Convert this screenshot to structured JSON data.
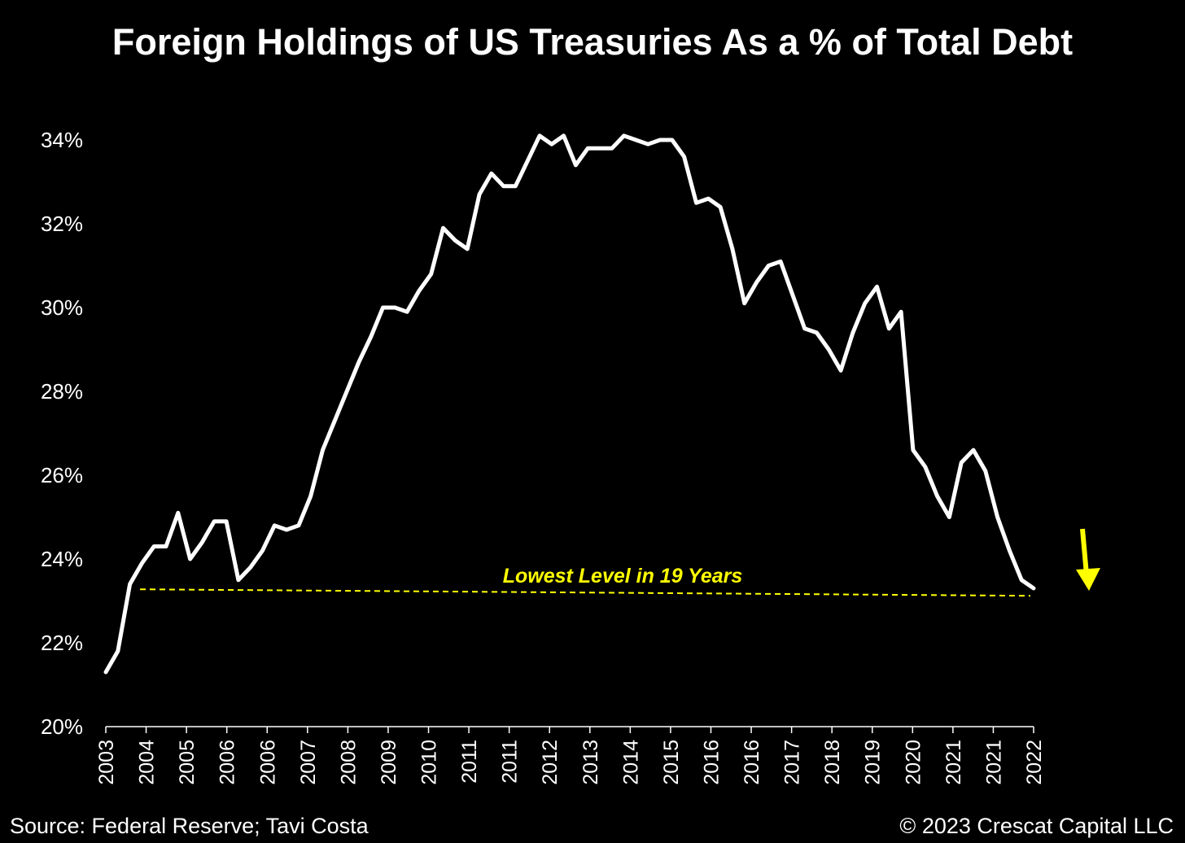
{
  "chart_data": {
    "type": "line",
    "title": "Foreign Holdings of US Treasuries As a % of Total Debt",
    "xlabel": "",
    "ylabel": "",
    "ylim": [
      20,
      35
    ],
    "y_ticks": [
      "20%",
      "22%",
      "24%",
      "26%",
      "28%",
      "30%",
      "32%",
      "34%"
    ],
    "y_tick_values": [
      20,
      22,
      24,
      26,
      28,
      30,
      32,
      34
    ],
    "x_tick_labels": [
      "2003",
      "2004",
      "2005",
      "2006",
      "2006",
      "2007",
      "2008",
      "2009",
      "2010",
      "2011",
      "2011",
      "2012",
      "2013",
      "2014",
      "2015",
      "2016",
      "2016",
      "2017",
      "2018",
      "2019",
      "2020",
      "2021",
      "2021",
      "2022"
    ],
    "grid": false,
    "legend": "none",
    "series": [
      {
        "color": "#ffffff",
        "values": [
          21.3,
          21.8,
          23.4,
          23.9,
          24.3,
          24.3,
          25.1,
          24.0,
          24.4,
          24.9,
          24.9,
          23.5,
          23.8,
          24.2,
          24.8,
          24.7,
          24.8,
          25.5,
          26.6,
          27.3,
          28.0,
          28.7,
          29.3,
          30.0,
          30.0,
          29.9,
          30.4,
          30.8,
          31.9,
          31.6,
          31.4,
          32.7,
          33.2,
          32.9,
          32.9,
          33.5,
          34.1,
          33.9,
          34.1,
          33.4,
          33.8,
          33.8,
          33.8,
          34.1,
          34.0,
          33.9,
          34.0,
          34.0,
          33.6,
          32.5,
          32.6,
          32.4,
          31.4,
          30.1,
          30.6,
          31.0,
          31.1,
          30.3,
          29.5,
          29.4,
          29.0,
          28.5,
          29.4,
          30.1,
          30.5,
          29.5,
          29.9,
          26.6,
          26.2,
          25.5,
          25.0,
          26.3,
          26.6,
          26.1,
          25.0,
          24.2,
          23.5,
          23.3
        ]
      }
    ],
    "annotation": {
      "text": "Lowest Level in 19 Years",
      "reference_value": 23.2,
      "color": "#ffff00"
    },
    "arrow_color": "#ffff00"
  },
  "footer": {
    "source": "Source: Federal Reserve; Tavi Costa",
    "copyright": "© 2023 Crescat Capital LLC"
  }
}
